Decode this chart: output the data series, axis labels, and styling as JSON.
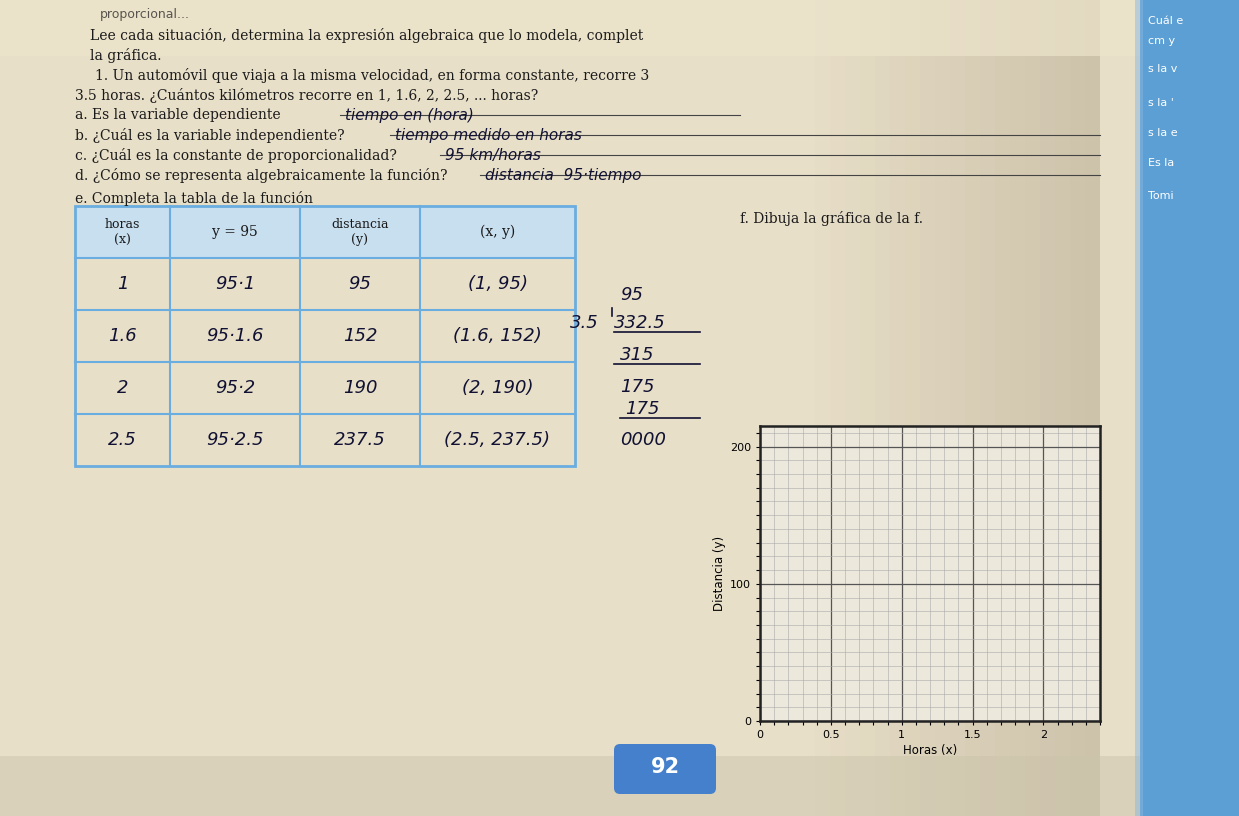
{
  "bg_color": "#c8bda8",
  "page_color": "#e8dfc8",
  "page_color2": "#ddd5be",
  "table_header_bg": "#c8dff0",
  "table_border_color": "#6aade0",
  "right_strip_color": "#5b9fd4",
  "right_strip2_color": "#4a8fc4",
  "text_color": "#1a1a1a",
  "handwrite_color": "#111133",
  "underline_color": "#444444",
  "grid_line_color": "#888888",
  "grid_minor_color": "#aaaaaa",
  "page_num_bg": "#4480cc",
  "title1": "Lee cada situación, determina la expresión algebraica que lo modela, complet",
  "title2": "la gráfica.",
  "prob1": "1. Un automóvil que viaja a la misma velocidad, en forma constante, recorre 3",
  "prob2": "3.5 horas. ¿Cuántos kilómetros recorre en 1, 1.6, 2, 2.5, ... horas?",
  "qa_label": "a. Es la variable dependiente",
  "qa_answer": "tiempo en (hora)",
  "qb_label": "b. ¿Cuál es la variable independiente?",
  "qb_answer": "tiempo medido en horas",
  "qc_label": "c. ¿Cuál es la constante de proporcionalidad?",
  "qc_answer": "95 km/horas",
  "qd_label": "d. ¿Cómo se representa algebraicamente la función?",
  "qd_answer": "distancia  95·tiempo",
  "qe_label": "e. Completa la tabla de la función",
  "qf_label": "f. Dibuja la gráfica de la f.",
  "table_col0": [
    "horas\n(x)",
    "1",
    "1.6",
    "2",
    "2.5"
  ],
  "table_col1": [
    "y = 95",
    "95·1",
    "95·1.6",
    "95·2",
    "95·2.5"
  ],
  "table_col2": [
    "distancia\n(y)",
    "95",
    "152",
    "190",
    "237.5"
  ],
  "table_col3": [
    "(x, y)",
    "(1, 95)",
    "(1.6, 152)",
    "(2, 190)",
    "(2.5, 237.5)"
  ],
  "right_labels": [
    "Cuál e",
    "cm y",
    "s la v",
    "s la '",
    "s la e",
    "Es la",
    "Tomi"
  ],
  "calc_lines": [
    "95",
    "3.5|332.5",
    "315",
    "175",
    "175",
    "0000"
  ],
  "graph_xticks": [
    0,
    0.5,
    1,
    1.5,
    2
  ],
  "graph_yticks": [
    0,
    100,
    200
  ],
  "graph_xlim": [
    0,
    2.4
  ],
  "graph_ylim": [
    0,
    215
  ],
  "xlabel": "Horas (x)",
  "ylabel": "Distancia (y)",
  "page_number": "92"
}
